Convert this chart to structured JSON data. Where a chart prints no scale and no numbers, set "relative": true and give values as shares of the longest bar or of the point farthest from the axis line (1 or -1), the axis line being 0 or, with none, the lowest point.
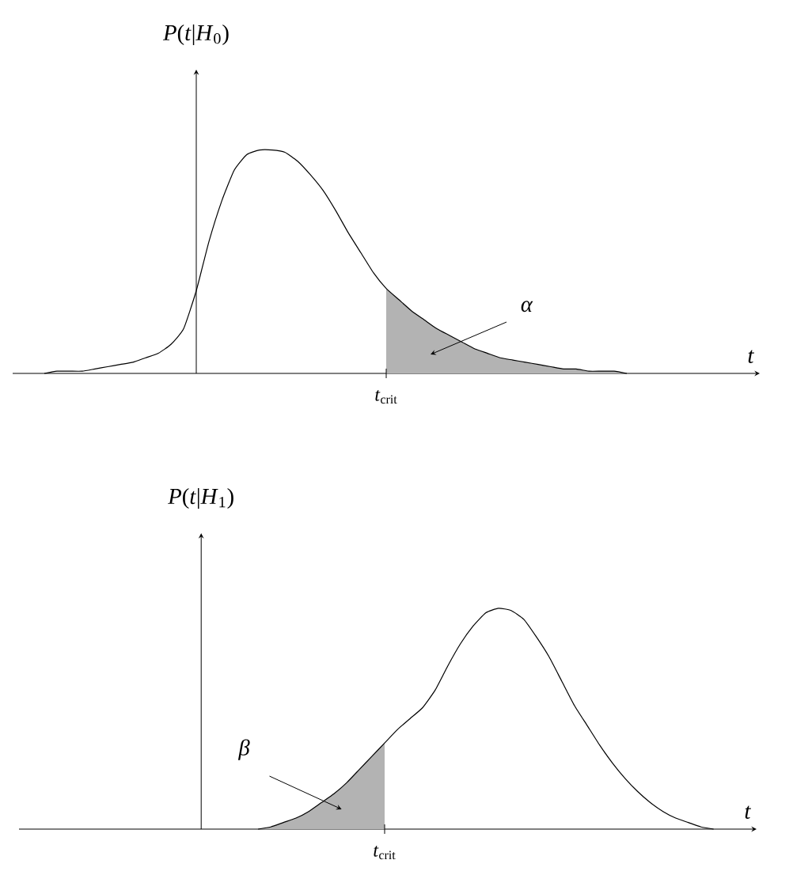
{
  "chart_data": [
    {
      "type": "line",
      "relative": true,
      "xlabel": "*t*",
      "ylabel": "*P*(*t*|*H*$_{0}$)",
      "annotations": [
        "*α*",
        "*t*$_{crit}$"
      ],
      "categories": [
        null,
        null,
        null,
        null,
        null,
        null,
        null,
        null,
        null,
        null,
        null,
        null,
        null,
        null,
        null,
        null,
        null,
        null,
        null,
        null,
        null,
        null,
        null,
        null,
        null,
        null,
        null,
        null,
        null,
        null,
        null,
        null,
        null,
        null,
        null,
        null,
        null,
        null,
        null,
        null,
        null,
        null,
        null,
        null,
        null,
        null,
        null
      ],
      "series": [
        {
          "type": "area",
          "color": "#b3b3b3",
          "values": [
            null,
            null,
            null,
            null,
            null,
            null,
            null,
            null,
            null,
            null,
            null,
            null,
            null,
            null,
            null,
            null,
            null,
            null,
            null,
            null,
            null,
            null,
            null,
            null,
            null,
            null,
            null,
            0.38,
            0.33,
            0.28,
            0.24,
            0.2,
            0.17,
            0.14,
            0.11,
            0.09,
            0.07,
            0.06,
            0.05,
            0.04,
            0.03,
            0.02,
            0.02,
            0.01,
            0.01,
            0.01,
            0
          ]
        },
        {
          "type": "line",
          "color": "#000000",
          "values": [
            0,
            0.01,
            0.01,
            0.01,
            0.02,
            0.03,
            0.04,
            0.05,
            0.07,
            0.09,
            0.13,
            0.2,
            0.37,
            0.59,
            0.77,
            0.91,
            0.98,
            1.0,
            1.0,
            0.99,
            0.95,
            0.89,
            0.82,
            0.73,
            0.63,
            0.54,
            0.45,
            0.38,
            0.33,
            0.28,
            0.24,
            0.2,
            0.17,
            0.14,
            0.11,
            0.09,
            0.07,
            0.06,
            0.05,
            0.04,
            0.03,
            0.02,
            0.02,
            0.01,
            0.01,
            0.01,
            0
          ]
        }
      ]
    },
    {
      "type": "line",
      "relative": true,
      "xlabel": "*t*",
      "ylabel": "*P*(*t*|*H*$_{1}$)",
      "annotations": [
        "*β*",
        "*t*$_{crit}$"
      ],
      "categories": [
        null,
        null,
        null,
        null,
        null,
        null,
        null,
        null,
        null,
        null,
        null,
        null,
        null,
        null,
        null,
        null,
        null,
        null,
        null,
        null,
        null,
        null,
        null,
        null,
        null,
        null,
        null,
        null,
        null,
        null,
        null,
        null,
        null,
        null,
        null,
        null,
        null
      ],
      "series": [
        {
          "type": "area",
          "color": "#b3b3b3",
          "values": [
            0,
            0.01,
            0.03,
            0.05,
            0.08,
            0.12,
            0.16,
            0.21,
            0.27,
            0.33,
            0.39,
            null,
            null,
            null,
            null,
            null,
            null,
            null,
            null,
            null,
            null,
            null,
            null,
            null,
            null,
            null,
            null,
            null,
            null,
            null,
            null,
            null,
            null,
            null,
            null,
            null,
            null
          ]
        },
        {
          "type": "line",
          "color": "#000000",
          "values": [
            0,
            0.01,
            0.03,
            0.05,
            0.08,
            0.12,
            0.16,
            0.21,
            0.27,
            0.33,
            0.39,
            0.45,
            0.5,
            0.55,
            0.63,
            0.74,
            0.84,
            0.92,
            0.98,
            1.0,
            0.99,
            0.95,
            0.87,
            0.78,
            0.67,
            0.56,
            0.47,
            0.38,
            0.3,
            0.23,
            0.17,
            0.12,
            0.08,
            0.05,
            0.03,
            0.01,
            0
          ]
        }
      ]
    }
  ]
}
